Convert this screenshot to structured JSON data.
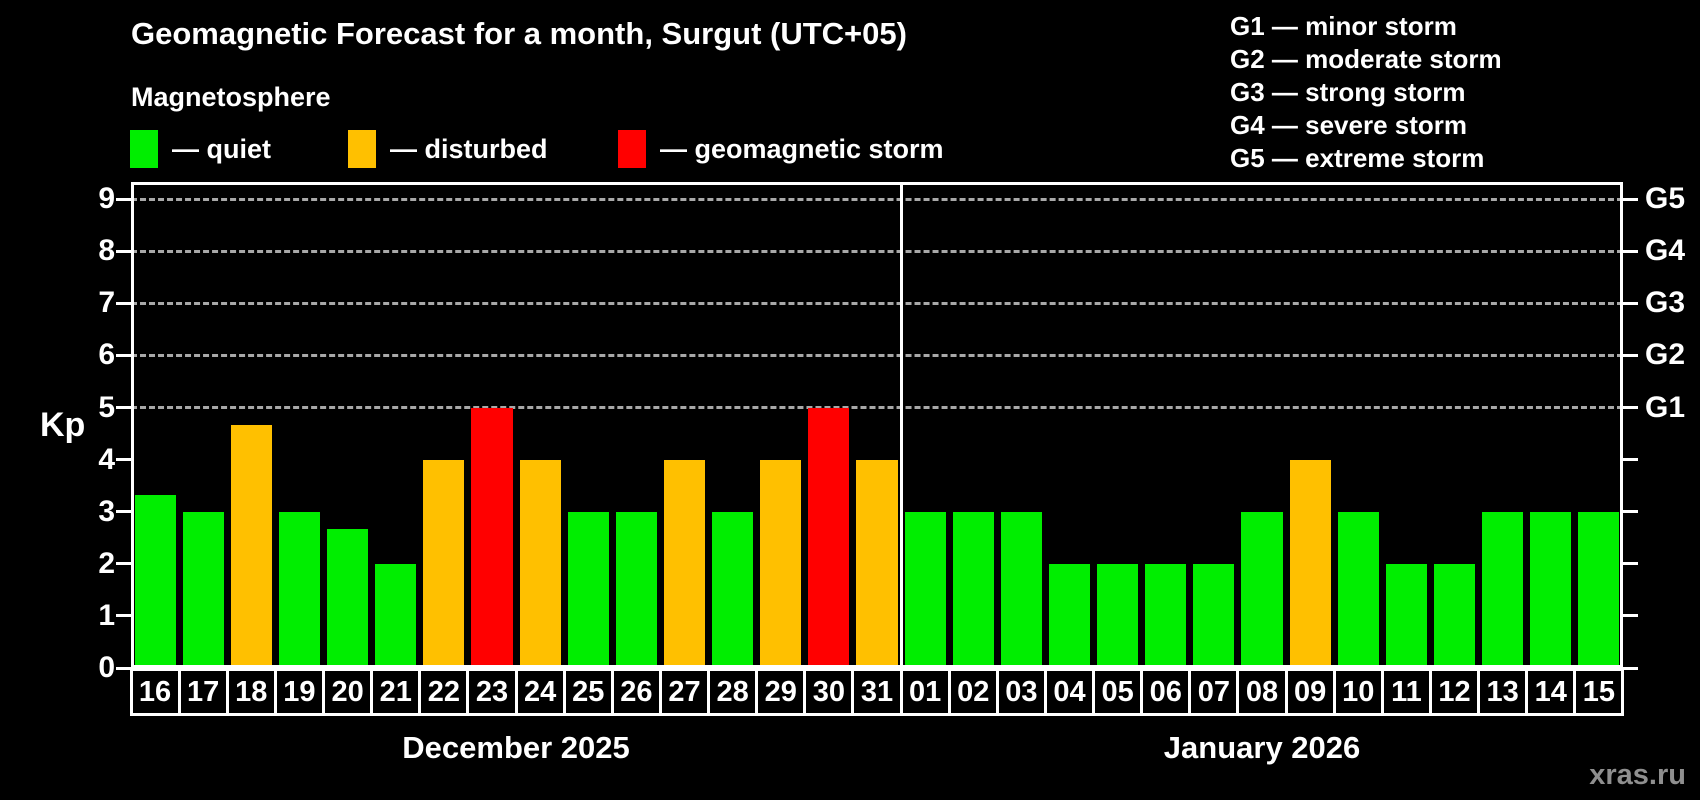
{
  "title": "Geomagnetic Forecast for a month, Surgut (UTC+05)",
  "subtitle": "Magnetosphere",
  "legend": {
    "items": [
      {
        "key": "quiet",
        "label": "— quiet",
        "color": "#00ee00"
      },
      {
        "key": "disturbed",
        "label": "— disturbed",
        "color": "#ffc000"
      },
      {
        "key": "storm",
        "label": "— geomagnetic storm",
        "color": "#ff0000"
      }
    ]
  },
  "storm_scale": [
    "G1 — minor storm",
    "G2 — moderate storm",
    "G3 — strong storm",
    "G4 — severe storm",
    "G5 — extreme storm"
  ],
  "watermark": "xras.ru",
  "chart_data": {
    "type": "bar",
    "title": "Geomagnetic Forecast for a month, Surgut (UTC+05)",
    "ylabel": "Kp",
    "ylim": [
      0,
      9.33
    ],
    "yticks": [
      0,
      1,
      2,
      3,
      4,
      5,
      6,
      7,
      8,
      9
    ],
    "gridlines_at": [
      5,
      6,
      7,
      8,
      9
    ],
    "grid": true,
    "right_axis_labels": [
      {
        "kp": 5,
        "label": "G1"
      },
      {
        "kp": 6,
        "label": "G2"
      },
      {
        "kp": 7,
        "label": "G3"
      },
      {
        "kp": 8,
        "label": "G4"
      },
      {
        "kp": 9,
        "label": "G5"
      }
    ],
    "level_colors": {
      "quiet": "#00ee00",
      "disturbed": "#ffc000",
      "storm": "#ff0000"
    },
    "groups": [
      {
        "label": "December 2025",
        "days": [
          {
            "day": "16",
            "kp": 3.33,
            "level": "quiet"
          },
          {
            "day": "17",
            "kp": 3,
            "level": "quiet"
          },
          {
            "day": "18",
            "kp": 4.67,
            "level": "disturbed"
          },
          {
            "day": "19",
            "kp": 3,
            "level": "quiet"
          },
          {
            "day": "20",
            "kp": 2.67,
            "level": "quiet"
          },
          {
            "day": "21",
            "kp": 2,
            "level": "quiet"
          },
          {
            "day": "22",
            "kp": 4,
            "level": "disturbed"
          },
          {
            "day": "23",
            "kp": 5,
            "level": "storm"
          },
          {
            "day": "24",
            "kp": 4,
            "level": "disturbed"
          },
          {
            "day": "25",
            "kp": 3,
            "level": "quiet"
          },
          {
            "day": "26",
            "kp": 3,
            "level": "quiet"
          },
          {
            "day": "27",
            "kp": 4,
            "level": "disturbed"
          },
          {
            "day": "28",
            "kp": 3,
            "level": "quiet"
          },
          {
            "day": "29",
            "kp": 4,
            "level": "disturbed"
          },
          {
            "day": "30",
            "kp": 5,
            "level": "storm"
          },
          {
            "day": "31",
            "kp": 4,
            "level": "disturbed"
          }
        ]
      },
      {
        "label": "January 2026",
        "days": [
          {
            "day": "01",
            "kp": 3,
            "level": "quiet"
          },
          {
            "day": "02",
            "kp": 3,
            "level": "quiet"
          },
          {
            "day": "03",
            "kp": 3,
            "level": "quiet"
          },
          {
            "day": "04",
            "kp": 2,
            "level": "quiet"
          },
          {
            "day": "05",
            "kp": 2,
            "level": "quiet"
          },
          {
            "day": "06",
            "kp": 2,
            "level": "quiet"
          },
          {
            "day": "07",
            "kp": 2,
            "level": "quiet"
          },
          {
            "day": "08",
            "kp": 3,
            "level": "quiet"
          },
          {
            "day": "09",
            "kp": 4,
            "level": "disturbed"
          },
          {
            "day": "10",
            "kp": 3,
            "level": "quiet"
          },
          {
            "day": "11",
            "kp": 2,
            "level": "quiet"
          },
          {
            "day": "12",
            "kp": 2,
            "level": "quiet"
          },
          {
            "day": "13",
            "kp": 3,
            "level": "quiet"
          },
          {
            "day": "14",
            "kp": 3,
            "level": "quiet"
          },
          {
            "day": "15",
            "kp": 3,
            "level": "quiet"
          }
        ]
      }
    ]
  }
}
